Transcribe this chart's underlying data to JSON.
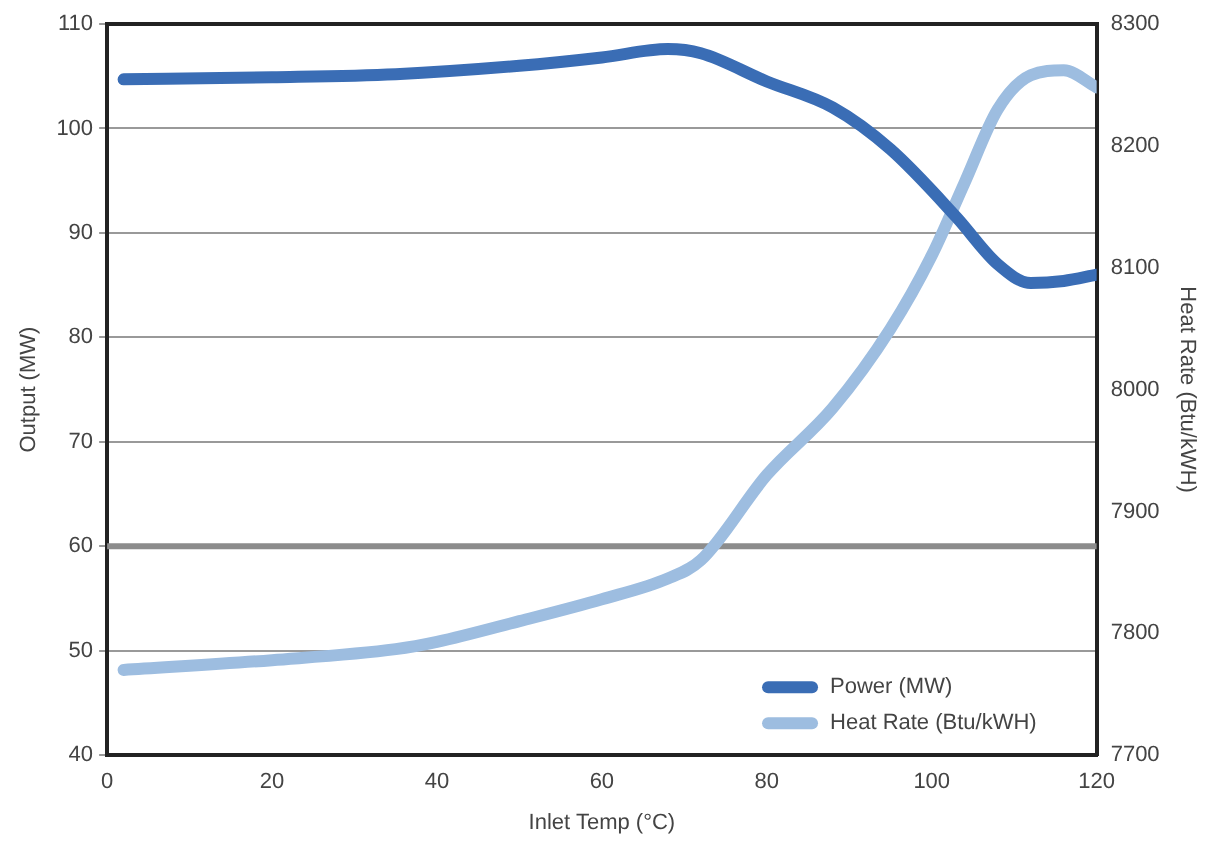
{
  "chart_data": {
    "type": "line",
    "xlabel": "Inlet Temp (°C)",
    "ylabel": "Output (MW)",
    "y2label": "Heat Rate (Btu/kWH)",
    "xlim": [
      0,
      120
    ],
    "xticks": [
      0,
      20,
      40,
      60,
      80,
      100,
      120
    ],
    "ylim": [
      40,
      110
    ],
    "yticks": [
      40,
      50,
      60,
      70,
      80,
      90,
      100,
      110
    ],
    "y2lim": [
      7700,
      8300
    ],
    "y2ticks": [
      7700,
      7800,
      7900,
      8000,
      8100,
      8200,
      8300
    ],
    "grid": "y",
    "legend": "bottom right",
    "marker": "none",
    "line_style": "solid",
    "ref_lines": [
      {
        "axis": "y",
        "value": 60,
        "color": "#8c8c8c"
      }
    ],
    "series": [
      {
        "name": "Power (MW)",
        "color": "#3a6db5",
        "x": [
          2,
          20,
          35,
          50,
          60,
          68,
          72,
          80,
          88,
          95,
          103,
          108,
          112,
          116,
          120
        ],
        "values": [
          104.7,
          104.9,
          105.2,
          106,
          106.8,
          107.6,
          107.2,
          104.5,
          102,
          98,
          91.5,
          87,
          85.2,
          85.4,
          86
        ]
      },
      {
        "name": "Heat Rate (Btu/kWH)",
        "color": "#9dbde0",
        "axis": "y2",
        "x": [
          2,
          20,
          35,
          40,
          50,
          60,
          68,
          72,
          80,
          88,
          95,
          100,
          104,
          108,
          112,
          116,
          120
        ],
        "values": [
          7770,
          7778,
          7787,
          7793,
          7810,
          7828,
          7845,
          7860,
          7930,
          7985,
          8050,
          8110,
          8170,
          8230,
          8258,
          8262,
          8248
        ]
      }
    ]
  }
}
